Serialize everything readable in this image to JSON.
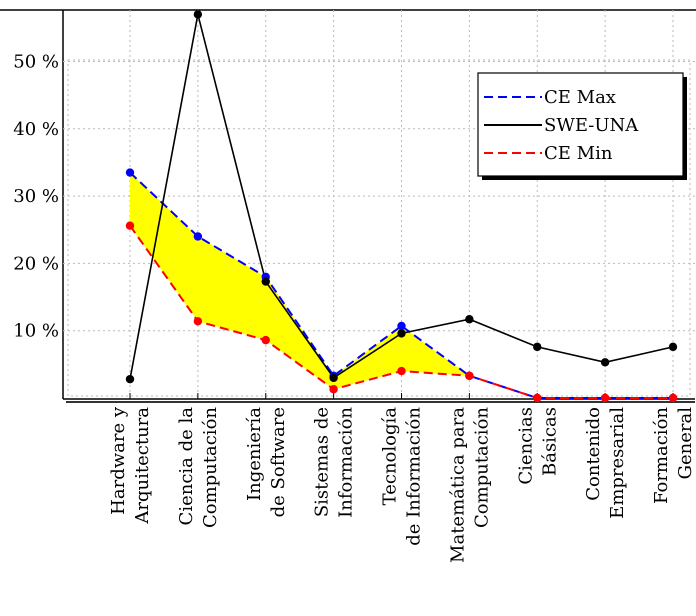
{
  "chart_data": {
    "type": "line",
    "title": "",
    "xlabel": "",
    "ylabel": "",
    "categories": [
      [
        "Hardware y",
        "Arquitectura"
      ],
      [
        "Ciencia de la",
        "Computación"
      ],
      [
        "Ingeniería",
        "de Software"
      ],
      [
        "Sistemas de",
        "Información"
      ],
      [
        "Tecnología",
        "de Información"
      ],
      [
        "Matemática para",
        "Computación"
      ],
      [
        "Ciencias",
        "Básicas"
      ],
      [
        "Contenido",
        "Empresarial"
      ],
      [
        "Formación",
        "General"
      ]
    ],
    "yticks": [
      {
        "value": 10,
        "label": "10 %"
      },
      {
        "value": 20,
        "label": "20 %"
      },
      {
        "value": 30,
        "label": "30 %"
      },
      {
        "value": 40,
        "label": "40 %"
      },
      {
        "value": 50,
        "label": "50 %"
      }
    ],
    "ylim": [
      0,
      50
    ],
    "grid": true,
    "legend_position": "top-right",
    "fill_between": {
      "upper": "CE Max",
      "lower": "CE Min",
      "color": "#ffff00"
    },
    "series": [
      {
        "name": "CE Max",
        "color": "#0000ff",
        "line_style": "dashed",
        "values": [
          33.5,
          24,
          18,
          3.3,
          10.7,
          3.3,
          0,
          0,
          0
        ]
      },
      {
        "name": "SWE-UNA",
        "color": "#000000",
        "line_style": "solid",
        "values": [
          2.8,
          57,
          17.3,
          3,
          9.6,
          11.7,
          7.6,
          5.3,
          7.6
        ]
      },
      {
        "name": "CE Min",
        "color": "#ff0000",
        "line_style": "dashed",
        "values": [
          25.6,
          11.4,
          8.6,
          1.3,
          4,
          3.3,
          0,
          0,
          0
        ]
      }
    ]
  }
}
